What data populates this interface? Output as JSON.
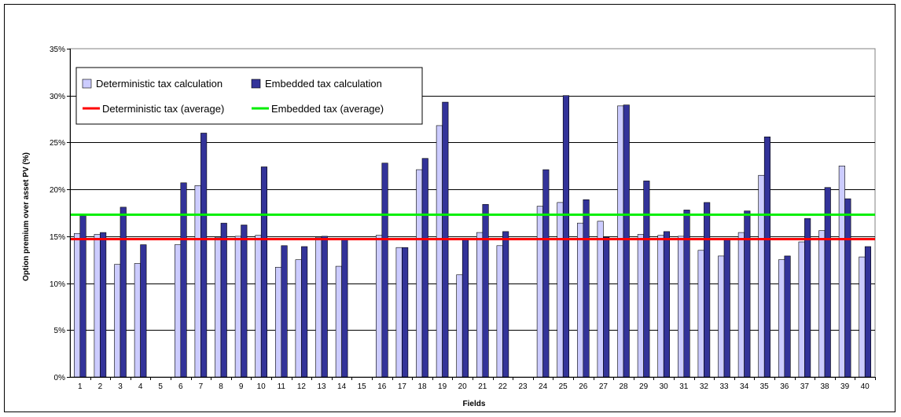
{
  "chart_data": {
    "type": "bar",
    "title": "",
    "xlabel": "Fields",
    "ylabel": "Option premium over asset PV (%)",
    "ylim": [
      0,
      35
    ],
    "ytick_step": 5,
    "ytick_suffix": "%",
    "grid": "horizontal",
    "legend_position": "top-left",
    "categories": [
      "1",
      "2",
      "3",
      "4",
      "5",
      "6",
      "7",
      "8",
      "9",
      "10",
      "11",
      "12",
      "13",
      "14",
      "15",
      "16",
      "17",
      "18",
      "19",
      "20",
      "21",
      "22",
      "23",
      "24",
      "25",
      "26",
      "27",
      "28",
      "29",
      "30",
      "31",
      "32",
      "33",
      "34",
      "35",
      "36",
      "37",
      "38",
      "39",
      "40"
    ],
    "series": [
      {
        "name": "Deterministic tax calculation",
        "color": "#ccccff",
        "values": [
          15.3,
          15.2,
          12.0,
          12.1,
          0,
          14.1,
          20.4,
          14.9,
          15.0,
          15.1,
          11.7,
          12.5,
          14.9,
          11.8,
          0,
          15.1,
          13.8,
          22.1,
          26.8,
          10.9,
          15.4,
          14.0,
          0,
          18.2,
          18.6,
          16.4,
          16.6,
          28.9,
          15.2,
          15.1,
          15.0,
          13.5,
          12.9,
          15.4,
          21.5,
          12.5,
          14.4,
          15.6,
          22.5,
          12.8
        ]
      },
      {
        "name": "Embedded tax calculation",
        "color": "#333399",
        "values": [
          17.2,
          15.4,
          18.1,
          14.1,
          0,
          20.7,
          26.0,
          16.4,
          16.2,
          22.4,
          14.0,
          13.9,
          15.0,
          14.7,
          0,
          22.8,
          13.8,
          23.3,
          29.3,
          14.7,
          18.4,
          15.5,
          0,
          22.1,
          30.0,
          18.9,
          14.9,
          29.0,
          20.9,
          15.5,
          17.8,
          18.6,
          14.7,
          17.7,
          25.6,
          12.9,
          16.9,
          20.2,
          19.0,
          13.9
        ]
      }
    ],
    "reference_lines": [
      {
        "name": "Deterministic tax (average)",
        "value": 14.7,
        "color": "#ff0000"
      },
      {
        "name": "Embedded tax (average)",
        "value": 17.3,
        "color": "#00ee00"
      }
    ]
  }
}
